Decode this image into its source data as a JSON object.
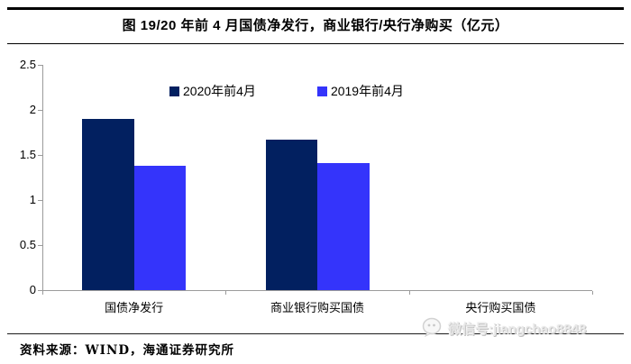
{
  "title": "图 19/20 年前 4 月国债净发行，商业银行/央行净购买（亿元）",
  "source_note": "资料来源：WIND，海通证券研究所",
  "watermark": {
    "icon": "wechat-icon",
    "text": "微信号:jiangchao8848"
  },
  "colors": {
    "series_2020": "#022060",
    "series_2019": "#3434fb",
    "axis": "#9b9b9b",
    "rule": "#000000",
    "watermark_text": "#e9e9e9"
  },
  "chart_data": {
    "type": "bar",
    "title": "图 19/20 年前 4 月国债净发行，商业银行/央行净购买（亿元）",
    "categories": [
      "国债净发行",
      "商业银行购买国债",
      "央行购买国债"
    ],
    "series": [
      {
        "name": "2020年前4月",
        "color": "#022060",
        "values": [
          1.9,
          1.67,
          0
        ]
      },
      {
        "name": "2019年前4月",
        "color": "#3434fb",
        "values": [
          1.38,
          1.41,
          0
        ]
      }
    ],
    "xlabel": "",
    "ylabel": "",
    "ylim": [
      0,
      2.5
    ],
    "yticks": [
      0,
      0.5,
      1,
      1.5,
      2,
      2.5
    ],
    "ytick_labels": [
      "0",
      "0.5",
      "1",
      "1.5",
      "2",
      "2.5"
    ],
    "grid": false,
    "legend_position": "top"
  }
}
